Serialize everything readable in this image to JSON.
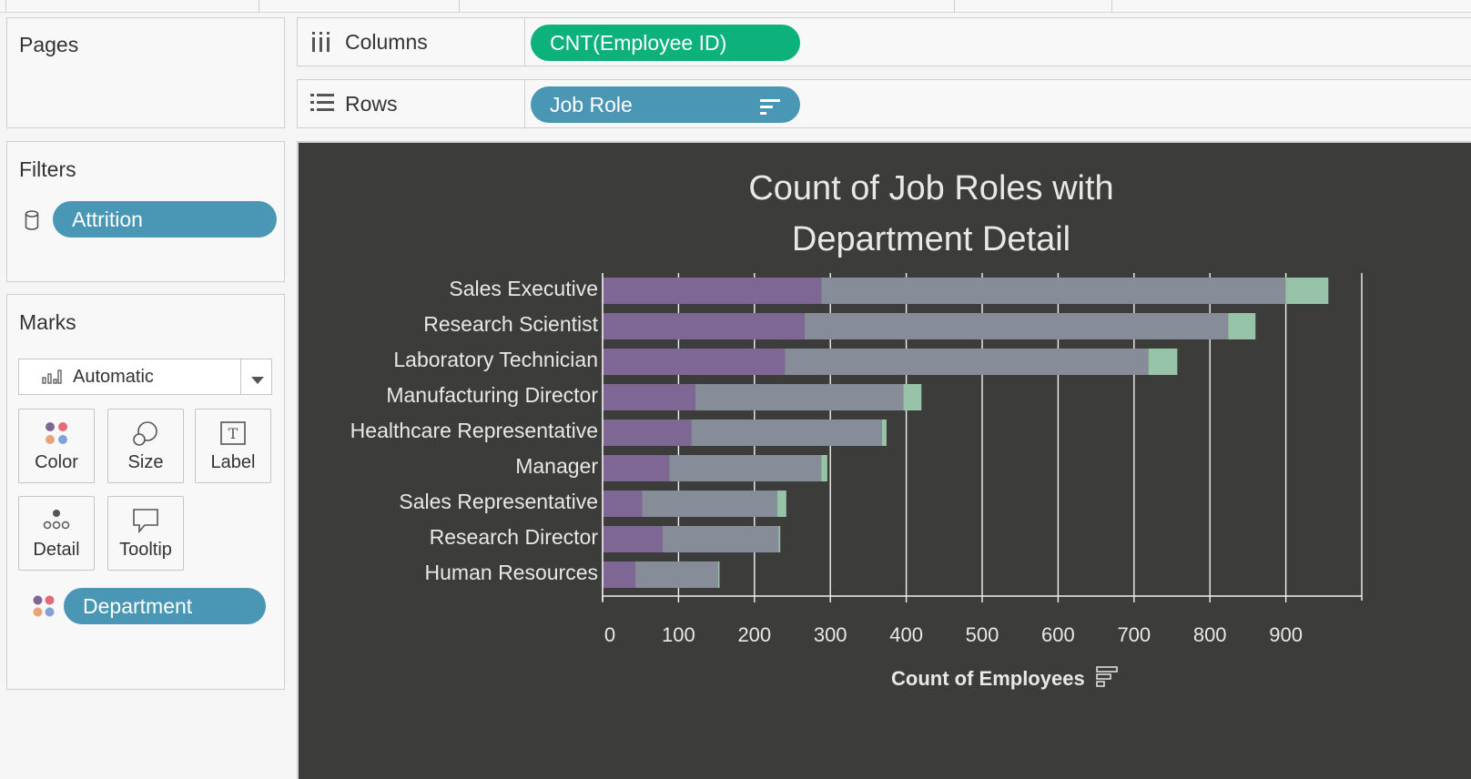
{
  "shelves": {
    "pages_title": "Pages",
    "columns_label": "Columns",
    "columns_pill": "CNT(Employee ID)",
    "rows_label": "Rows",
    "rows_pill": "Job Role"
  },
  "filters": {
    "title": "Filters",
    "pill": "Attrition"
  },
  "marks": {
    "title": "Marks",
    "mark_type": "Automatic",
    "buttons": [
      "Color",
      "Size",
      "Label",
      "Detail",
      "Tooltip"
    ],
    "color_pill": "Department"
  },
  "colors": {
    "pill_blue": "#4a96b5",
    "pill_green": "#0cb17c",
    "view_background": "#3c3d3b",
    "sales": "#7f6795",
    "research_development": "#878d98",
    "human_resources": "#97c4a8"
  },
  "chart_data": {
    "type": "bar",
    "orientation": "horizontal",
    "stacked": true,
    "title": "Count of Job Roles with Department Detail",
    "xlabel": "Count of Employees",
    "xlim": [
      0,
      1000
    ],
    "xticks": [
      0,
      100,
      200,
      300,
      400,
      500,
      600,
      700,
      800,
      900
    ],
    "grid": true,
    "categories": [
      "Sales Executive",
      "Research Scientist",
      "Laboratory Technician",
      "Manufacturing Director",
      "Healthcare Representative",
      "Manager",
      "Sales Representative",
      "Research Director",
      "Human Resources"
    ],
    "series": [
      {
        "color": "#7f6795",
        "values": [
          288,
          266,
          240,
          122,
          117,
          88,
          52,
          79,
          43
        ]
      },
      {
        "color": "#878d98",
        "values": [
          612,
          558,
          479,
          274,
          251,
          200,
          178,
          153,
          109
        ]
      },
      {
        "color": "#97c4a8",
        "values": [
          56,
          36,
          38,
          24,
          6,
          8,
          12,
          2,
          2
        ]
      }
    ]
  }
}
